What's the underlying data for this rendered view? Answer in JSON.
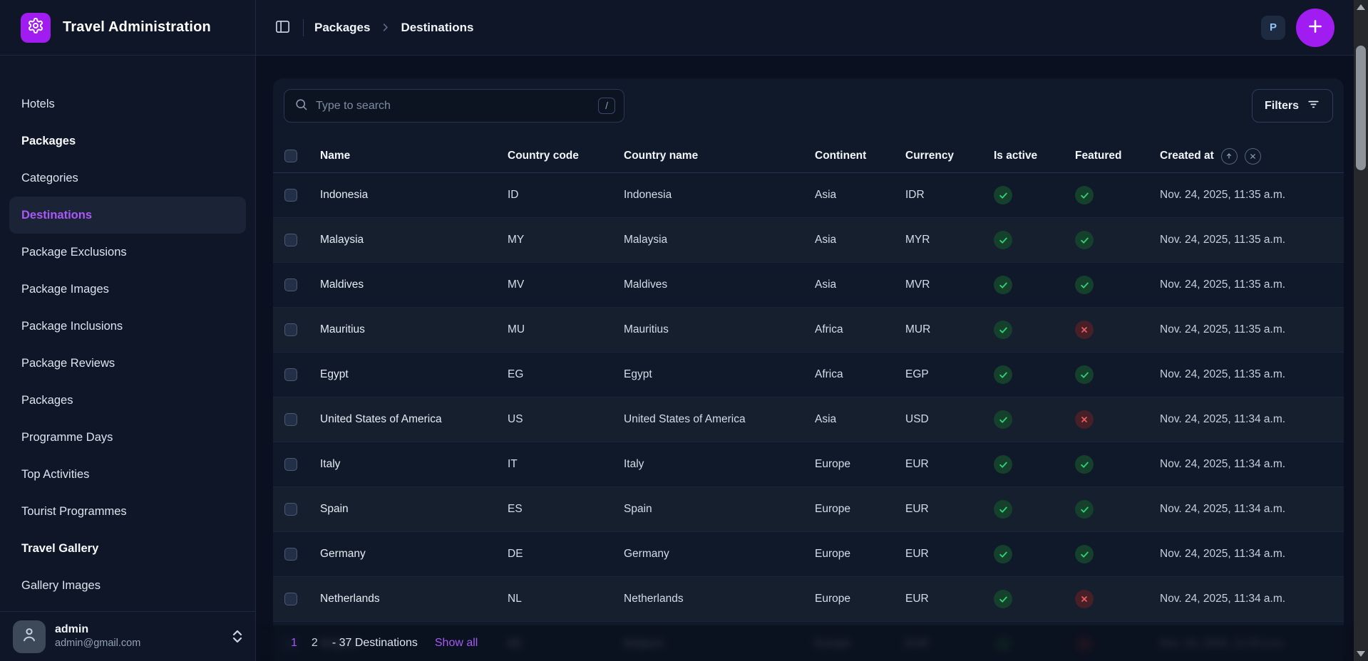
{
  "app": {
    "title": "Travel Administration"
  },
  "topbar": {
    "breadcrumb": {
      "parent": "Packages",
      "current": "Destinations"
    },
    "profile_initial": "P"
  },
  "sidebar": {
    "items": [
      {
        "label": "Hotels",
        "type": "link",
        "active": false
      },
      {
        "label": "Packages",
        "type": "section",
        "active": false
      },
      {
        "label": "Categories",
        "type": "link",
        "active": false
      },
      {
        "label": "Destinations",
        "type": "link",
        "active": true
      },
      {
        "label": "Package Exclusions",
        "type": "link",
        "active": false
      },
      {
        "label": "Package Images",
        "type": "link",
        "active": false
      },
      {
        "label": "Package Inclusions",
        "type": "link",
        "active": false
      },
      {
        "label": "Package Reviews",
        "type": "link",
        "active": false
      },
      {
        "label": "Packages",
        "type": "link",
        "active": false
      },
      {
        "label": "Programme Days",
        "type": "link",
        "active": false
      },
      {
        "label": "Top Activities",
        "type": "link",
        "active": false
      },
      {
        "label": "Tourist Programmes",
        "type": "link",
        "active": false
      },
      {
        "label": "Travel Gallery",
        "type": "section",
        "active": false
      },
      {
        "label": "Gallery Images",
        "type": "link",
        "active": false
      }
    ],
    "user": {
      "name": "admin",
      "email": "admin@gmail.com"
    }
  },
  "toolbar": {
    "search_placeholder": "Type to search",
    "search_shortcut": "/",
    "filters_label": "Filters"
  },
  "table": {
    "columns": [
      "Name",
      "Country code",
      "Country name",
      "Continent",
      "Currency",
      "Is active",
      "Featured",
      "Created at"
    ],
    "rows": [
      {
        "name": "Indonesia",
        "code": "ID",
        "country": "Indonesia",
        "continent": "Asia",
        "currency": "IDR",
        "active": true,
        "featured": true,
        "created": "Nov. 24, 2025, 11:35 a.m."
      },
      {
        "name": "Malaysia",
        "code": "MY",
        "country": "Malaysia",
        "continent": "Asia",
        "currency": "MYR",
        "active": true,
        "featured": true,
        "created": "Nov. 24, 2025, 11:35 a.m."
      },
      {
        "name": "Maldives",
        "code": "MV",
        "country": "Maldives",
        "continent": "Asia",
        "currency": "MVR",
        "active": true,
        "featured": true,
        "created": "Nov. 24, 2025, 11:35 a.m."
      },
      {
        "name": "Mauritius",
        "code": "MU",
        "country": "Mauritius",
        "continent": "Africa",
        "currency": "MUR",
        "active": true,
        "featured": false,
        "created": "Nov. 24, 2025, 11:35 a.m."
      },
      {
        "name": "Egypt",
        "code": "EG",
        "country": "Egypt",
        "continent": "Africa",
        "currency": "EGP",
        "active": true,
        "featured": true,
        "created": "Nov. 24, 2025, 11:35 a.m."
      },
      {
        "name": "United States of America",
        "code": "US",
        "country": "United States of America",
        "continent": "Asia",
        "currency": "USD",
        "active": true,
        "featured": false,
        "created": "Nov. 24, 2025, 11:34 a.m."
      },
      {
        "name": "Italy",
        "code": "IT",
        "country": "Italy",
        "continent": "Europe",
        "currency": "EUR",
        "active": true,
        "featured": true,
        "created": "Nov. 24, 2025, 11:34 a.m."
      },
      {
        "name": "Spain",
        "code": "ES",
        "country": "Spain",
        "continent": "Europe",
        "currency": "EUR",
        "active": true,
        "featured": true,
        "created": "Nov. 24, 2025, 11:34 a.m."
      },
      {
        "name": "Germany",
        "code": "DE",
        "country": "Germany",
        "continent": "Europe",
        "currency": "EUR",
        "active": true,
        "featured": true,
        "created": "Nov. 24, 2025, 11:34 a.m."
      },
      {
        "name": "Netherlands",
        "code": "NL",
        "country": "Netherlands",
        "continent": "Europe",
        "currency": "EUR",
        "active": true,
        "featured": false,
        "created": "Nov. 24, 2025, 11:34 a.m."
      }
    ],
    "partial_row": {
      "name": "Belgium",
      "code": "BE",
      "country": "Belgium",
      "continent": "Europe",
      "currency": "EUR",
      "active": true,
      "featured": false,
      "created": "Nov. 24, 2025, 11:34 a.m."
    }
  },
  "pagination": {
    "pages": [
      "1",
      "2"
    ],
    "current_page": "1",
    "summary": "- 37 Destinations",
    "show_all_label": "Show all"
  },
  "colors": {
    "accent_purple": "#a11cf0",
    "link_purple": "#a855f7",
    "success_green": "#2fd575",
    "danger_red": "#ef5e5e"
  }
}
